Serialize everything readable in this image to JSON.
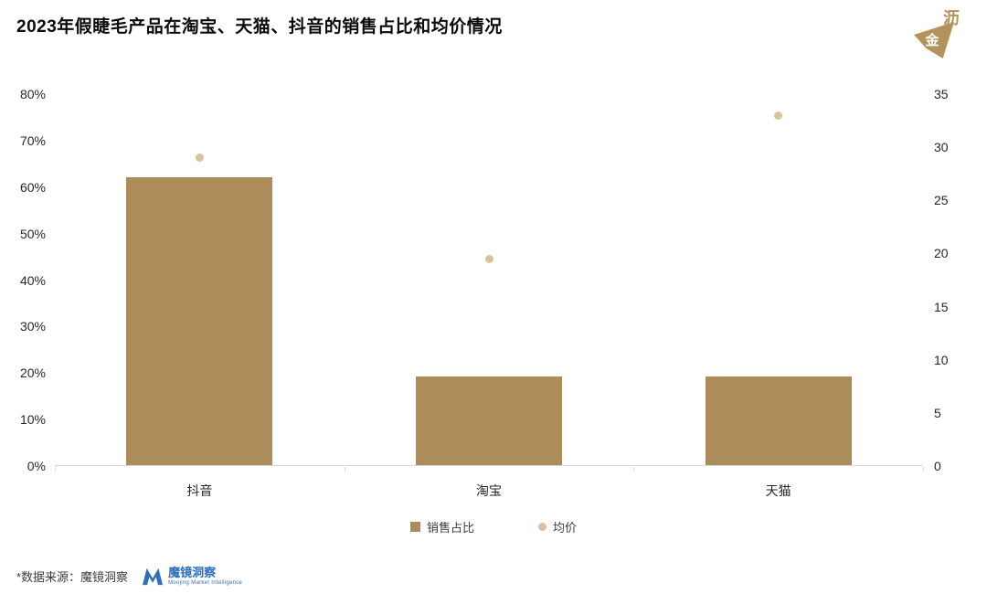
{
  "header": {
    "title": "2023年假睫毛产品在淘宝、天猫、抖音的销售占比和均价情况",
    "logo_text_top": "沥",
    "logo_text_bottom": "金",
    "logo_color": "#B2945A"
  },
  "chart_data": {
    "type": "bar",
    "title": "2023年假睫毛产品在淘宝、天猫、抖音的销售占比和均价情况",
    "categories": [
      "抖音",
      "淘宝",
      "天猫"
    ],
    "series": [
      {
        "name": "销售占比",
        "type": "bar",
        "axis": "left",
        "unit": "%",
        "values": [
          62,
          19,
          19
        ],
        "color": "#AC8C59"
      },
      {
        "name": "均价",
        "type": "scatter",
        "axis": "right",
        "values": [
          29,
          19.5,
          33
        ],
        "color": "#DBC29C"
      }
    ],
    "left_axis": {
      "min": 0,
      "max": 80,
      "step": 10,
      "format": "percent",
      "tick_labels": [
        "0%",
        "10%",
        "20%",
        "30%",
        "40%",
        "50%",
        "60%",
        "70%",
        "80%"
      ]
    },
    "right_axis": {
      "min": 0,
      "max": 35,
      "step": 5,
      "tick_labels": [
        "0",
        "5",
        "10",
        "15",
        "20",
        "25",
        "30",
        "35"
      ]
    },
    "grid": false,
    "legend_position": "bottom"
  },
  "legend": {
    "items": [
      {
        "label": "销售占比"
      },
      {
        "label": "均价"
      }
    ]
  },
  "footer": {
    "source_note": "*数据来源：魔镜洞察",
    "brand_name": "魔镜洞察",
    "brand_tagline": "Moojing Market Intelligence",
    "brand_color": "#2E6FBA"
  }
}
